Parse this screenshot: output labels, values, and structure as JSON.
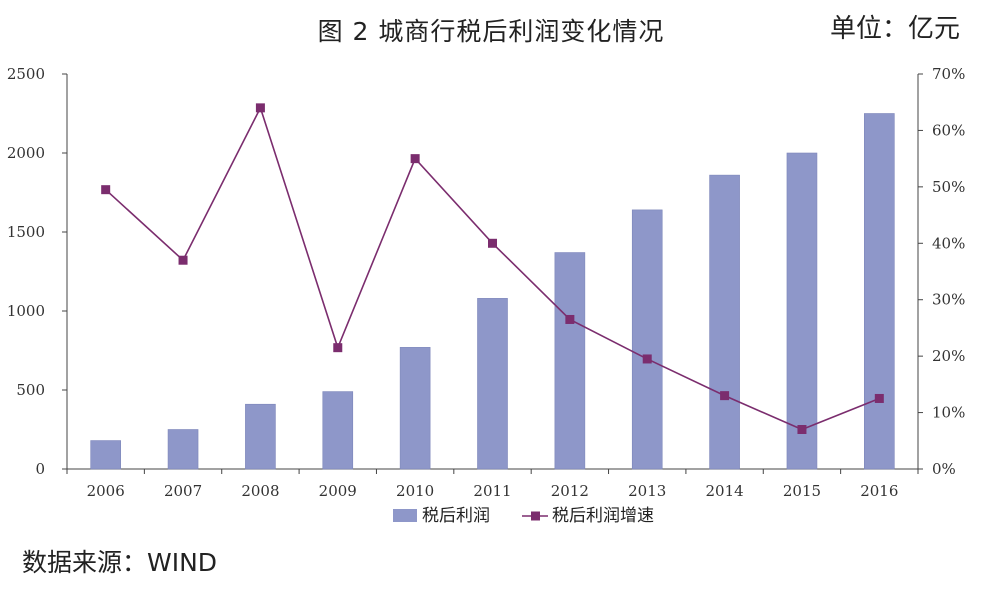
{
  "header": {
    "title": "图 2  城商行税后利润变化情况",
    "unit": "单位：亿元"
  },
  "footer": {
    "source": "数据来源：WIND"
  },
  "chart_data": {
    "type": "bar",
    "categories": [
      "2006",
      "2007",
      "2008",
      "2009",
      "2010",
      "2011",
      "2012",
      "2013",
      "2014",
      "2015",
      "2016"
    ],
    "series": [
      {
        "name": "税后利润",
        "type": "bar",
        "axis": "left",
        "color": "#8e97c9",
        "values": [
          180,
          250,
          410,
          490,
          770,
          1080,
          1370,
          1640,
          1860,
          2000,
          2250
        ]
      },
      {
        "name": "税后利润增速",
        "type": "line",
        "axis": "right",
        "color": "#7b2d6e",
        "values": [
          49.5,
          37.0,
          64.0,
          21.5,
          55.0,
          40.0,
          26.5,
          19.5,
          13.0,
          7.0,
          12.5
        ]
      }
    ],
    "y_left": {
      "min": 0,
      "max": 2500,
      "ticks": [
        0,
        500,
        1000,
        1500,
        2000,
        2500
      ]
    },
    "y_right": {
      "min": 0,
      "max": 70,
      "ticks": [
        "0%",
        "10%",
        "20%",
        "30%",
        "40%",
        "50%",
        "60%",
        "70%"
      ]
    },
    "legend": "bottom",
    "grid": false
  }
}
